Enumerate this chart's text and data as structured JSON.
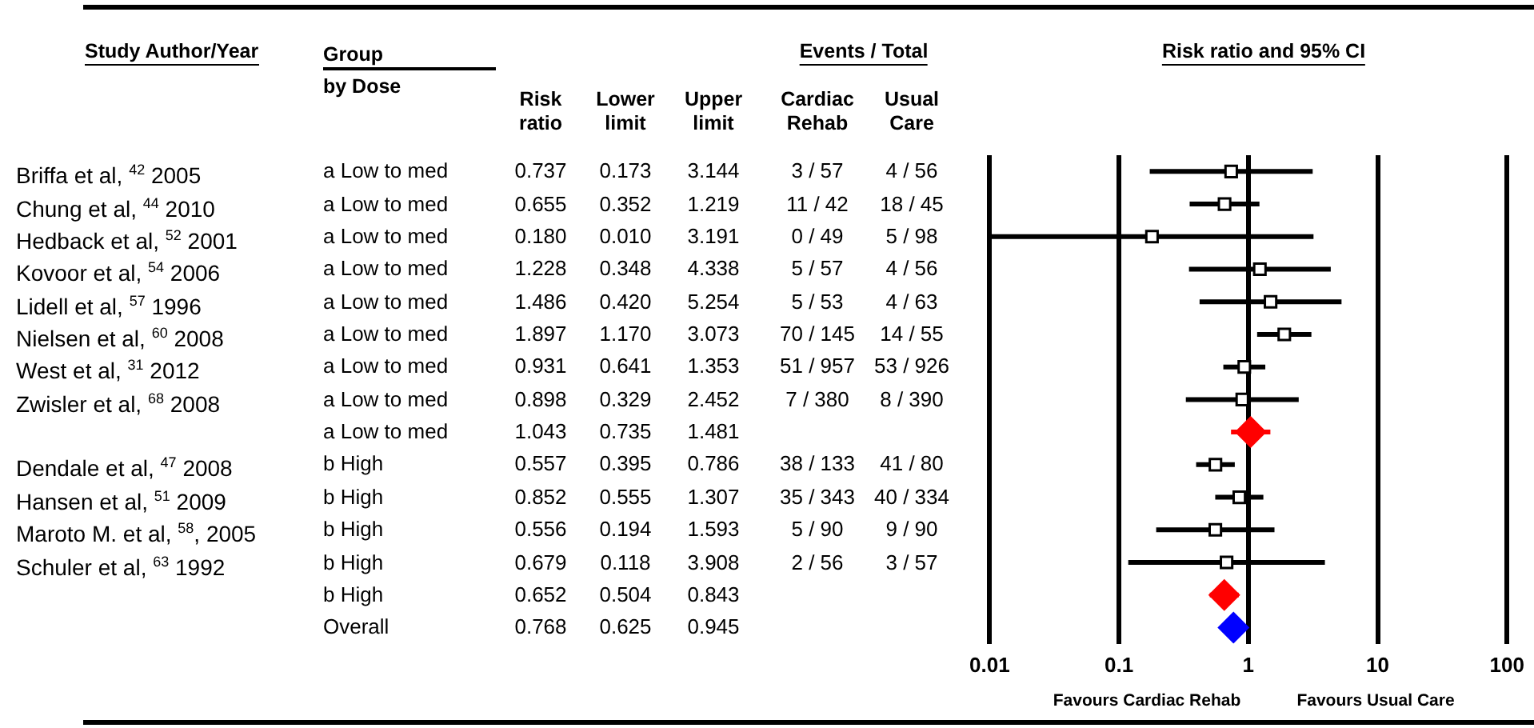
{
  "chart_data": [
    {
      "type": "other",
      "title": "Events / Total",
      "ylabel": "Study Author/Year",
      "categories": [
        "Group by Dose",
        "Risk ratio",
        "Lower limit",
        "Upper limit",
        "Cardiac Rehab",
        "Usual Care"
      ],
      "y_categories": [
        "Briffa et al, $^{42}$ 2005",
        "Chung et al, $^{44}$ 2010",
        "Hedback et al, $^{52}$ 2001",
        "Kovoor et al,  $^{54}$ 2006",
        "Lidell et al, $^{57}$ 1996",
        "Nielsen et al, $^{60}$ 2008",
        "West et al, $^{31}$ 2012",
        "Zwisler et al, $^{68}$ 2008",
        null,
        "Dendale et al, $^{47}$  2008",
        "Hansen et al, $^{51}$ 2009",
        "Maroto M. et al, $^{58}$, 2005",
        "Schuler et al, $^{63}$ 1992",
        null,
        null
      ],
      "cell_labels": [
        [
          "a Low to med",
          "0.737",
          "0.173",
          "3.144",
          "3 / 57",
          "4 / 56"
        ],
        [
          "a Low to med",
          "0.655",
          "0.352",
          "1.219",
          "11 / 42",
          "18 / 45"
        ],
        [
          "a Low to med",
          "0.180",
          "0.010",
          "3.191",
          "0 / 49",
          "5 / 98"
        ],
        [
          "a Low to med",
          "1.228",
          "0.348",
          "4.338",
          "5 / 57",
          "4 / 56"
        ],
        [
          "a Low to med",
          "1.486",
          "0.420",
          "5.254",
          "5 / 53",
          "4 / 63"
        ],
        [
          "a Low to med",
          "1.897",
          "1.170",
          "3.073",
          "70 / 145",
          "14 / 55"
        ],
        [
          "a Low to med",
          "0.931",
          "0.641",
          "1.353",
          "51 / 957",
          "53 / 926"
        ],
        [
          "a Low to med",
          "0.898",
          "0.329",
          "2.452",
          "7 / 380",
          "8 / 390"
        ],
        [
          "a Low to med",
          "1.043",
          "0.735",
          "1.481",
          null,
          null
        ],
        [
          "b High",
          "0.557",
          "0.395",
          "0.786",
          "38 / 133",
          "41 / 80"
        ],
        [
          "b High",
          "0.852",
          "0.555",
          "1.307",
          "35 / 343",
          "40 / 334"
        ],
        [
          "b High",
          "0.556",
          "0.194",
          "1.593",
          "5 / 90",
          "9 / 90"
        ],
        [
          "b High",
          "0.679",
          "0.118",
          "3.908",
          "2 / 56",
          "3 / 57"
        ],
        [
          "b High",
          "0.652",
          "0.504",
          "0.843",
          null,
          null
        ],
        [
          "Overall",
          "0.768",
          "0.625",
          "0.945",
          null,
          null
        ]
      ]
    },
    {
      "type": "scatter",
      "orientation": "horizontal",
      "title": "Risk ratio and 95% CI",
      "categories": [
        null,
        null,
        null,
        null,
        null,
        null,
        null,
        null,
        null,
        null,
        null,
        null,
        null,
        null,
        null
      ],
      "series": [
        {
          "color": "#000000",
          "marker": "square",
          "values": [
            0.737,
            0.655,
            0.18,
            1.228,
            1.486,
            1.897,
            0.931,
            0.898,
            null,
            0.557,
            0.852,
            0.556,
            0.679,
            null,
            null
          ],
          "errors": [
            [
              0.173,
              3.144
            ],
            [
              0.352,
              1.219
            ],
            [
              0.01,
              3.191
            ],
            [
              0.348,
              4.338
            ],
            [
              0.42,
              5.254
            ],
            [
              1.17,
              3.073
            ],
            [
              0.641,
              1.353
            ],
            [
              0.329,
              2.452
            ],
            null,
            [
              0.395,
              0.786
            ],
            [
              0.555,
              1.307
            ],
            [
              0.194,
              1.593
            ],
            [
              0.118,
              3.908
            ],
            null,
            null
          ]
        },
        {
          "color": "#ff0000",
          "marker": "diamond",
          "values": [
            null,
            null,
            null,
            null,
            null,
            null,
            null,
            null,
            1.043,
            null,
            null,
            null,
            null,
            0.652,
            null
          ],
          "errors": [
            null,
            null,
            null,
            null,
            null,
            null,
            null,
            null,
            [
              0.735,
              1.481
            ],
            null,
            null,
            null,
            null,
            [
              0.504,
              0.843
            ],
            null
          ]
        },
        {
          "color": "#0000ff",
          "marker": "diamond",
          "values": [
            null,
            null,
            null,
            null,
            null,
            null,
            null,
            null,
            null,
            null,
            null,
            null,
            null,
            null,
            0.768
          ],
          "errors": [
            null,
            null,
            null,
            null,
            null,
            null,
            null,
            null,
            null,
            null,
            null,
            null,
            null,
            null,
            [
              0.625,
              0.945
            ]
          ]
        }
      ],
      "log": "x",
      "xlim": [
        0.01,
        100
      ],
      "xticks": [
        0.01,
        0.1,
        1,
        10,
        100
      ],
      "grid": "x",
      "legend": false,
      "annotations": [
        "Favours Cardiac Rehab",
        "Favours Usual Care"
      ]
    }
  ]
}
